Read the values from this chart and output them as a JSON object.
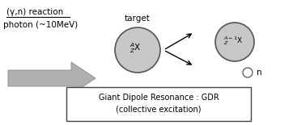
{
  "bg_color": "#ffffff",
  "fig_width": 3.62,
  "fig_height": 1.55,
  "dpi": 100,
  "title_text": "(γ,n) reaction",
  "photon_text": "photon (~10MeV)",
  "target_label_text": "target",
  "neutron_text": "n",
  "box_line1": "Giant Dipole Resonance : GDR",
  "box_line2": "(collective excitation)",
  "arrow_body_color": "#b0b0b0",
  "arrow_edge_color": "#888888",
  "target_circle_color": "#c8c8c8",
  "target_circle_edge": "#555555",
  "product_circle_color": "#c8c8c8",
  "product_circle_edge": "#555555",
  "neutron_circle_color": "#ffffff",
  "neutron_circle_edge": "#555555",
  "box_edge": "#444444"
}
